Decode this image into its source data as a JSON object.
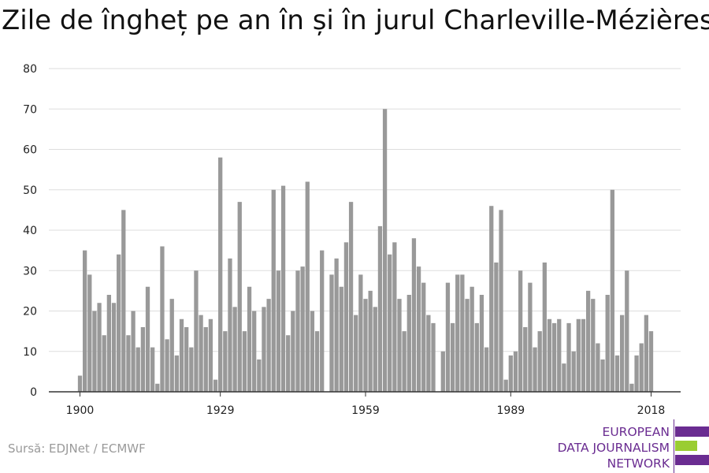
{
  "title": "Zile de îngheț pe an în și în jurul Charleville-Mézières",
  "source": "Sursă: EDJNet / ECMWF",
  "logo": {
    "lines": [
      "EUROPEAN",
      "DATA JOURNALISM",
      "NETWORK"
    ],
    "color_purple": "#6a2c91",
    "color_green": "#9acd32"
  },
  "colors": {
    "bar": "#999999",
    "grid": "#dddddd",
    "axis": "#333333",
    "text": "#222222"
  },
  "chart_data": {
    "type": "bar",
    "title": "Zile de îngheț pe an în și în jurul Charleville-Mézières",
    "xlabel": "",
    "ylabel": "",
    "xlim": [
      1900,
      2018
    ],
    "ylim": [
      0,
      80
    ],
    "x_ticks": [
      1900,
      1929,
      1959,
      1989,
      2018
    ],
    "y_ticks": [
      0,
      10,
      20,
      30,
      40,
      50,
      60,
      70,
      80
    ],
    "grid": true,
    "years": [
      1900,
      1901,
      1902,
      1903,
      1904,
      1905,
      1906,
      1907,
      1908,
      1909,
      1910,
      1911,
      1912,
      1913,
      1914,
      1915,
      1916,
      1917,
      1918,
      1919,
      1920,
      1921,
      1922,
      1923,
      1924,
      1925,
      1926,
      1927,
      1928,
      1929,
      1930,
      1931,
      1932,
      1933,
      1934,
      1935,
      1936,
      1937,
      1938,
      1939,
      1940,
      1941,
      1942,
      1943,
      1944,
      1945,
      1946,
      1947,
      1948,
      1949,
      1950,
      1951,
      1952,
      1953,
      1954,
      1955,
      1956,
      1957,
      1958,
      1959,
      1960,
      1961,
      1962,
      1963,
      1964,
      1965,
      1966,
      1967,
      1968,
      1969,
      1970,
      1971,
      1972,
      1973,
      1974,
      1975,
      1976,
      1977,
      1978,
      1979,
      1980,
      1981,
      1982,
      1983,
      1984,
      1985,
      1986,
      1987,
      1988,
      1989,
      1990,
      1991,
      1992,
      1993,
      1994,
      1995,
      1996,
      1997,
      1998,
      1999,
      2000,
      2001,
      2002,
      2003,
      2004,
      2005,
      2006,
      2007,
      2008,
      2009,
      2010,
      2011,
      2012,
      2013,
      2014,
      2015,
      2016,
      2017,
      2018
    ],
    "values": [
      4,
      35,
      29,
      20,
      22,
      14,
      24,
      22,
      34,
      45,
      14,
      20,
      11,
      16,
      26,
      11,
      2,
      36,
      13,
      23,
      9,
      18,
      16,
      11,
      30,
      19,
      16,
      18,
      3,
      58,
      15,
      33,
      21,
      47,
      15,
      26,
      20,
      8,
      21,
      23,
      50,
      30,
      51,
      14,
      20,
      30,
      31,
      52,
      20,
      15,
      35,
      0,
      29,
      33,
      26,
      37,
      47,
      19,
      29,
      23,
      25,
      21,
      41,
      70,
      34,
      37,
      23,
      15,
      24,
      38,
      31,
      27,
      19,
      17,
      0,
      10,
      27,
      17,
      29,
      29,
      23,
      26,
      17,
      24,
      11,
      46,
      32,
      45,
      3,
      9,
      10,
      30,
      16,
      27,
      11,
      15,
      32,
      18,
      17,
      18,
      7,
      17,
      10,
      18,
      18,
      25,
      23,
      12,
      8,
      24,
      50,
      9,
      19,
      30,
      2,
      9,
      12,
      19,
      15
    ]
  }
}
